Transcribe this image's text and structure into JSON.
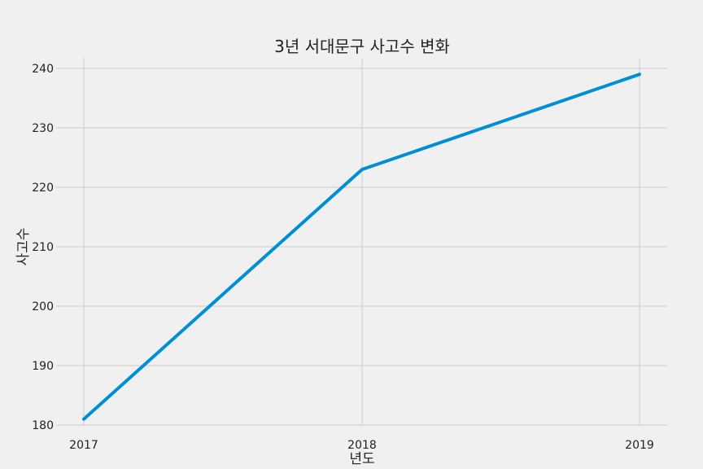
{
  "chart_data": {
    "type": "line",
    "title": "3년 서대문구 사고수 변화",
    "xlabel": "년도",
    "ylabel": "사고수",
    "x": [
      "2017",
      "2018",
      "2019"
    ],
    "series": [
      {
        "values": [
          181,
          223,
          239
        ]
      }
    ],
    "ylim": [
      180,
      240
    ],
    "yticks": [
      "180",
      "190",
      "200",
      "210",
      "220",
      "230",
      "240"
    ],
    "grid": true,
    "legend": "none",
    "colors": {
      "line": "#008fd5",
      "background": "#f0f0f0",
      "grid": "#cbcbcb"
    }
  }
}
